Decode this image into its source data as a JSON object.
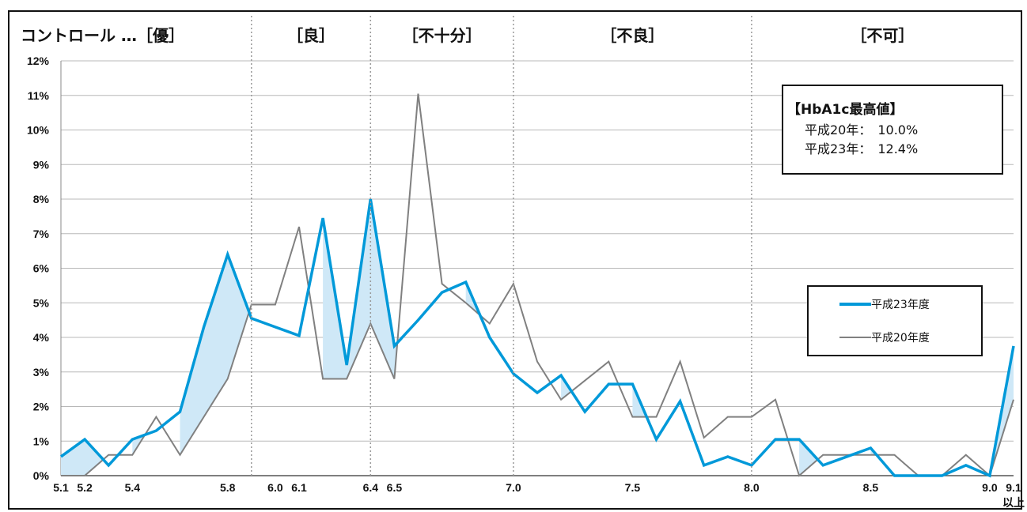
{
  "chart_data": {
    "type": "line",
    "title": "",
    "xlabel": "",
    "ylabel": "",
    "ylim": [
      0,
      12
    ],
    "y_unit": "%",
    "y_ticks": [
      "0%",
      "1%",
      "2%",
      "3%",
      "4%",
      "5%",
      "6%",
      "7%",
      "8%",
      "9%",
      "10%",
      "11%",
      "12%"
    ],
    "x_categories": [
      "5.1",
      "5.2",
      "5.3",
      "5.4",
      "5.5",
      "5.6",
      "5.7",
      "5.8",
      "5.9",
      "6.0",
      "6.1",
      "6.2",
      "6.3",
      "6.4",
      "6.5",
      "6.6",
      "6.7",
      "6.8",
      "6.9",
      "7.0",
      "7.1",
      "7.2",
      "7.3",
      "7.4",
      "7.5",
      "7.6",
      "7.7",
      "7.8",
      "7.9",
      "8.0",
      "8.1",
      "8.2",
      "8.3",
      "8.4",
      "8.5",
      "8.6",
      "8.7",
      "8.8",
      "8.9",
      "9.0",
      "9.1"
    ],
    "x_tick_labels": [
      {
        "cat": "5.1",
        "text": "5.1"
      },
      {
        "cat": "5.2",
        "text": "5.2"
      },
      {
        "cat": "5.4",
        "text": "5.4"
      },
      {
        "cat": "5.8",
        "text": "5.8"
      },
      {
        "cat": "6.0",
        "text": "6.0"
      },
      {
        "cat": "6.1",
        "text": "6.1"
      },
      {
        "cat": "6.4",
        "text": "6.4"
      },
      {
        "cat": "6.5",
        "text": "6.5"
      },
      {
        "cat": "7.0",
        "text": "7.0"
      },
      {
        "cat": "7.5",
        "text": "7.5"
      },
      {
        "cat": "8.0",
        "text": "8.0"
      },
      {
        "cat": "8.5",
        "text": "8.5"
      },
      {
        "cat": "9.0",
        "text": "9.0"
      },
      {
        "cat": "9.1",
        "text": "9.1"
      }
    ],
    "x_last_suffix": "以上",
    "series": [
      {
        "name": "平成23年度",
        "color": "#0099d9",
        "values": [
          0.55,
          1.05,
          0.3,
          1.05,
          1.3,
          1.85,
          4.3,
          6.4,
          4.55,
          4.3,
          4.05,
          7.45,
          3.2,
          8.0,
          3.75,
          4.5,
          5.3,
          5.6,
          4.0,
          2.95,
          2.4,
          2.9,
          1.85,
          2.65,
          2.65,
          1.05,
          2.15,
          0.3,
          0.55,
          0.3,
          1.05,
          1.05,
          0.3,
          0.55,
          0.8,
          0.0,
          0.0,
          0.0,
          0.3,
          0.0,
          3.75
        ]
      },
      {
        "name": "平成20年度",
        "color": "#808080",
        "values": [
          0.0,
          0.0,
          0.6,
          0.6,
          1.7,
          0.6,
          1.7,
          2.8,
          4.95,
          4.95,
          7.2,
          2.8,
          2.8,
          4.4,
          2.8,
          11.05,
          5.55,
          5.0,
          4.4,
          5.55,
          3.3,
          2.2,
          2.75,
          3.3,
          1.7,
          1.7,
          3.3,
          1.1,
          1.7,
          1.7,
          2.2,
          0.0,
          0.6,
          0.6,
          0.6,
          0.6,
          0.0,
          0.0,
          0.6,
          0.0,
          2.2
        ]
      }
    ],
    "fill_between_color": "#cfe8f7",
    "bands": [
      {
        "label": "コントロール …［優］",
        "end": "5.9"
      },
      {
        "label": "［良］",
        "end": "6.4"
      },
      {
        "label": "［不十分］",
        "end": "7.0"
      },
      {
        "label": "［不良］",
        "end": "8.0"
      },
      {
        "label": "［不可］",
        "end": null
      }
    ],
    "annotation": {
      "title": "【HbA1c最高値】",
      "lines": [
        "平成20年：　10.0%",
        "平成23年：　12.4%"
      ]
    },
    "legend": {
      "placement": "right"
    },
    "grid": true
  }
}
